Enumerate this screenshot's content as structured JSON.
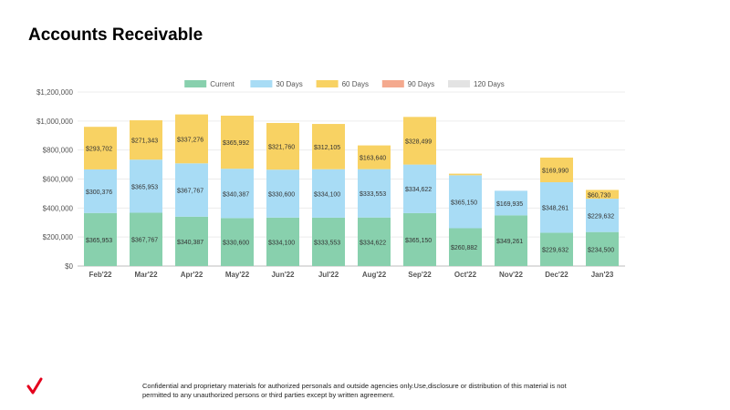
{
  "page": {
    "title": "Accounts Receivable",
    "footer": "Confidential and proprietary materials for authorized personals and outside agencies only.Use,disclosure or distribution of this material is not permitted to any unauthorized persons or third parties except by written agreement."
  },
  "colors": {
    "current": "#88d0ad",
    "days30": "#a8dcf5",
    "days60": "#f8d263",
    "days90": "#f4a98e",
    "days120": "#e3e3e3",
    "logo": "#e4001c"
  },
  "chart_data": {
    "type": "bar",
    "stacked": true,
    "title": "",
    "xlabel": "",
    "ylabel": "",
    "ylim": [
      0,
      1200000
    ],
    "yticks": [
      0,
      200000,
      400000,
      600000,
      800000,
      1000000,
      1200000
    ],
    "ytick_labels": [
      "$0",
      "$200,000",
      "$400,000",
      "$600,000",
      "$800,000",
      "$1,000,000",
      "$1,200,000"
    ],
    "grid": true,
    "legend": "top",
    "categories": [
      "Feb'22",
      "Mar'22",
      "Apr'22",
      "May'22",
      "Jun'22",
      "Jul'22",
      "Aug'22",
      "Sep'22",
      "Oct'22",
      "Nov'22",
      "Dec'22",
      "Jan'23"
    ],
    "series": [
      {
        "name": "Current",
        "values": [
          365953,
          367767,
          340387,
          330600,
          334100,
          333553,
          334622,
          365150,
          260882,
          349261,
          229632,
          234500
        ],
        "labels": [
          "$365,953",
          "$367,767",
          "$340,387",
          "$330,600",
          "$334,100",
          "$333,553",
          "$334,622",
          "$365,150",
          "$260,882",
          "$349,261",
          "$229,632",
          "$234,500"
        ]
      },
      {
        "name": "30 Days",
        "values": [
          300376,
          365953,
          367767,
          340387,
          330600,
          334100,
          333553,
          334622,
          365150,
          169935,
          348261,
          229632
        ],
        "labels": [
          "$300,376",
          "$365,953",
          "$367,767",
          "$340,387",
          "$330,600",
          "$334,100",
          "$333,553",
          "$334,622",
          "$365,150",
          "$169,935",
          "$348,261",
          "$229,632"
        ]
      },
      {
        "name": "60 Days",
        "values": [
          293702,
          271343,
          337276,
          365992,
          321760,
          312105,
          163640,
          328499,
          11000,
          0,
          169990,
          60730
        ],
        "labels": [
          "$293,702",
          "$271,343",
          "$337,276",
          "$365,992",
          "$321,760",
          "$312,105",
          "$163,640",
          "$328,499",
          "",
          "",
          "$169,990",
          "$60,730"
        ]
      },
      {
        "name": "90 Days",
        "values": [
          0,
          0,
          0,
          0,
          0,
          0,
          0,
          0,
          0,
          0,
          0,
          0
        ],
        "labels": [
          "",
          "",
          "",
          "",
          "",
          "",
          "",
          "",
          "",
          "",
          "",
          ""
        ]
      },
      {
        "name": "120 Days",
        "values": [
          0,
          0,
          0,
          0,
          0,
          0,
          0,
          0,
          0,
          0,
          0,
          0
        ],
        "labels": [
          "",
          "",
          "",
          "",
          "",
          "",
          "",
          "",
          "",
          "",
          "",
          ""
        ]
      }
    ]
  }
}
